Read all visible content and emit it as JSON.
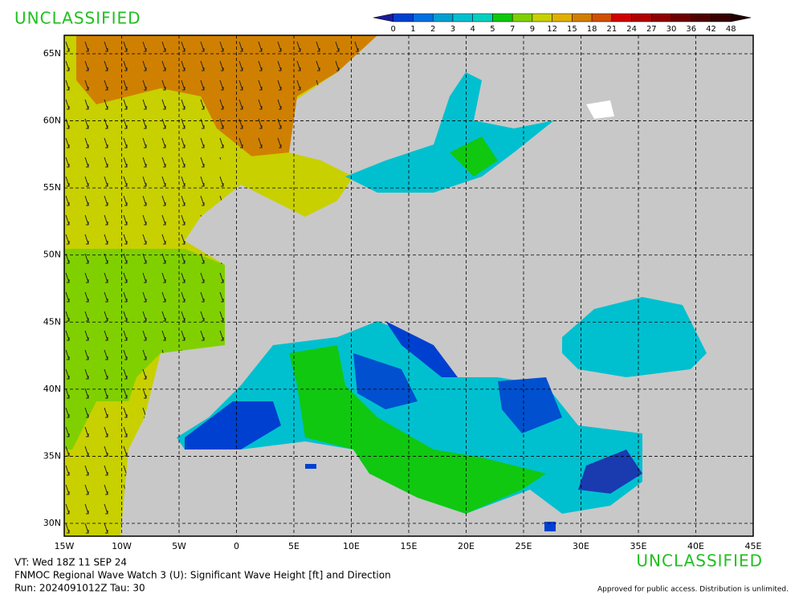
{
  "header": {
    "classification_top": "UNCLASSIFIED",
    "classification_bottom": "UNCLASSIFIED"
  },
  "colorbar": {
    "labels": [
      "0",
      "1",
      "2",
      "3",
      "4",
      "5",
      "7",
      "9",
      "12",
      "15",
      "18",
      "21",
      "24",
      "27",
      "30",
      "36",
      "42",
      "48"
    ],
    "colors": [
      "#1a1aa0",
      "#0040d0",
      "#0070e0",
      "#00a0d0",
      "#00c0d0",
      "#00d0c0",
      "#10c810",
      "#80d000",
      "#c8d000",
      "#e0b000",
      "#d08000",
      "#d05000",
      "#d00000",
      "#b00000",
      "#900000",
      "#700000",
      "#500000",
      "#380000",
      "#200000"
    ]
  },
  "map": {
    "lon_ticks": [
      {
        "value": -15,
        "label": "15W"
      },
      {
        "value": -10,
        "label": "10W"
      },
      {
        "value": -5,
        "label": "5W"
      },
      {
        "value": 0,
        "label": "0"
      },
      {
        "value": 5,
        "label": "5E"
      },
      {
        "value": 10,
        "label": "10E"
      },
      {
        "value": 15,
        "label": "15E"
      },
      {
        "value": 20,
        "label": "20E"
      },
      {
        "value": 25,
        "label": "25E"
      },
      {
        "value": 30,
        "label": "30E"
      },
      {
        "value": 35,
        "label": "35E"
      },
      {
        "value": 40,
        "label": "40E"
      },
      {
        "value": 45,
        "label": "45E"
      }
    ],
    "lat_ticks": [
      {
        "value": 30,
        "label": "30N"
      },
      {
        "value": 35,
        "label": "35N"
      },
      {
        "value": 40,
        "label": "40N"
      },
      {
        "value": 45,
        "label": "45N"
      },
      {
        "value": 50,
        "label": "50N"
      },
      {
        "value": 55,
        "label": "55N"
      },
      {
        "value": 60,
        "label": "60N"
      },
      {
        "value": 65,
        "label": "65N"
      }
    ]
  },
  "footer": {
    "valid_time": "VT: Wed 18Z 11 SEP 24",
    "product": "FNMOC Regional Wave Watch 3 (U): Significant Wave Height [ft] and Direction",
    "run": "Run: 2024091012Z Tau: 30",
    "release": "Approved for public access. Distribution is unlimited."
  }
}
